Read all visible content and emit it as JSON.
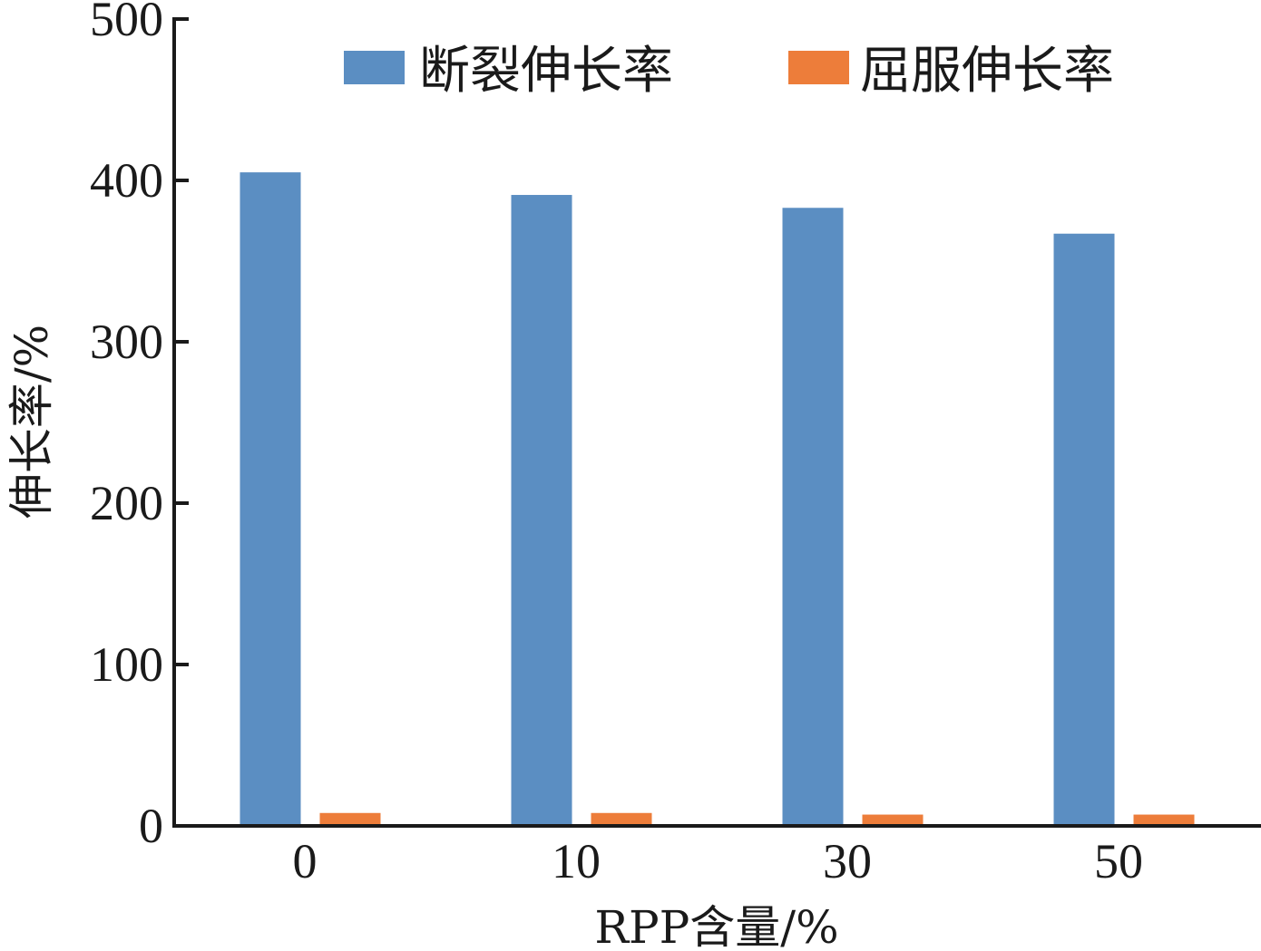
{
  "chart_data": {
    "type": "bar",
    "categories": [
      "0",
      "10",
      "30",
      "50"
    ],
    "series": [
      {
        "name": "断裂伸长率",
        "values": [
          405,
          391,
          383,
          367
        ],
        "color": "#5b8ec2"
      },
      {
        "name": "屈服伸长率",
        "values": [
          8,
          8,
          7,
          7
        ],
        "color": "#ed7d3a"
      }
    ],
    "xlabel": "RPP含量/%",
    "ylabel": "伸长率/%",
    "ylim": [
      0,
      500
    ],
    "yticks": [
      "0",
      "100",
      "200",
      "300",
      "400",
      "500"
    ],
    "legend_position": "top-right",
    "grid": false
  }
}
